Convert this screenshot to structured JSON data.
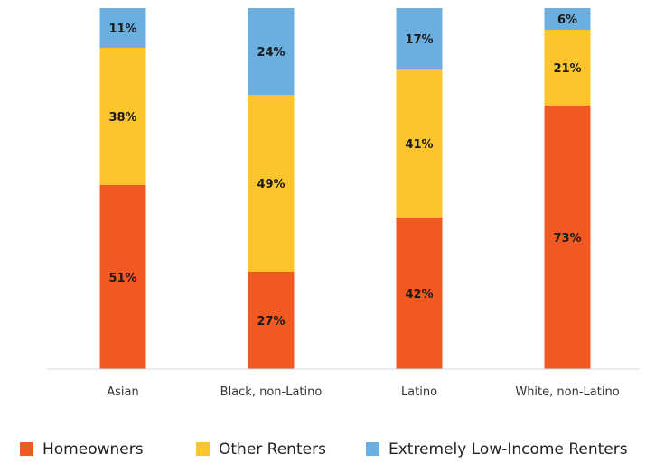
{
  "chart_data": {
    "type": "bar",
    "stacked": true,
    "percent_stacked": true,
    "categories": [
      "Asian",
      "Black, non-Latino",
      "Latino",
      "White, non-Latino"
    ],
    "series": [
      {
        "name": "Homeowners",
        "values": [
          51,
          27,
          42,
          73
        ],
        "labels": [
          "51%",
          "27%",
          "42%",
          "73%"
        ],
        "color": "#f05a22"
      },
      {
        "name": "Other Renters",
        "values": [
          38,
          49,
          41,
          21
        ],
        "labels": [
          "38%",
          "49%",
          "41%",
          "21%"
        ],
        "color": "#fcc52e"
      },
      {
        "name": "Extremely Low-Income Renters",
        "values": [
          11,
          24,
          17,
          6
        ],
        "labels": [
          "11%",
          "24%",
          "17%",
          "6%"
        ],
        "color": "#6aafe0"
      }
    ],
    "title": "",
    "xlabel": "",
    "ylabel": "",
    "ylim": [
      0,
      100
    ],
    "grid": false,
    "legend_position": "bottom"
  }
}
